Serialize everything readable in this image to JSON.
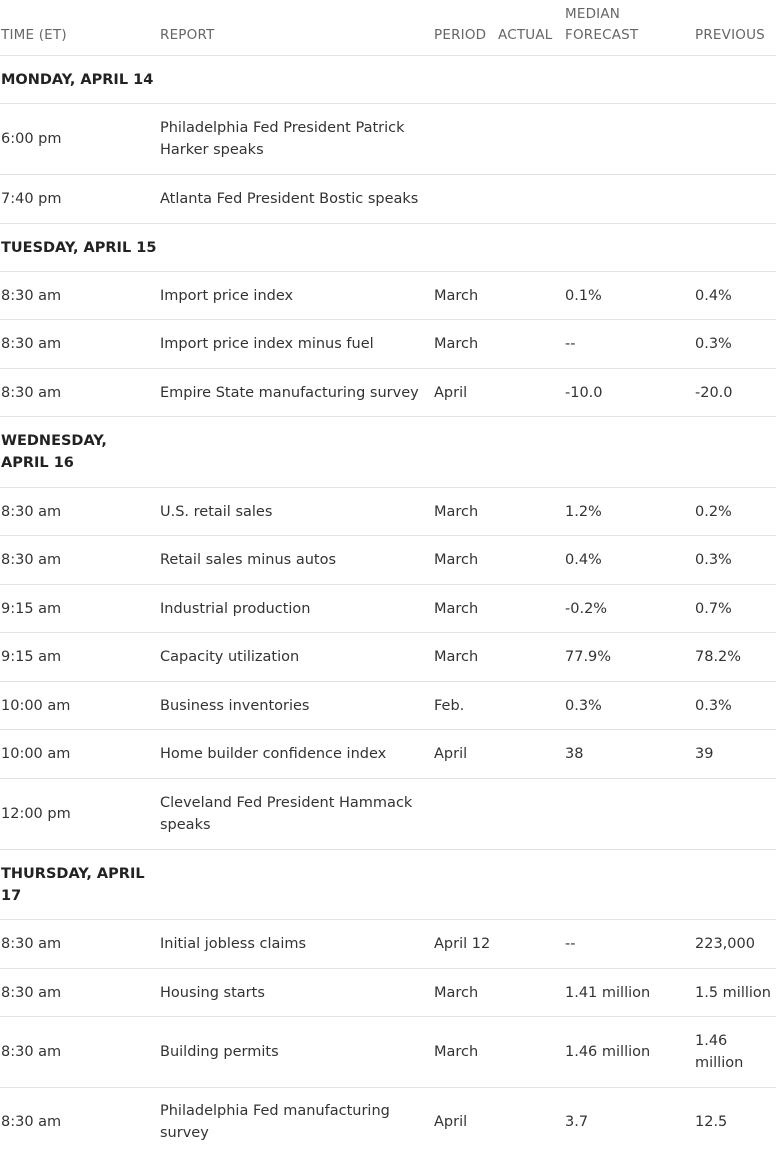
{
  "headers": {
    "time": "TIME (ET)",
    "report": "REPORT",
    "period": "PERIOD",
    "actual": "ACTUAL",
    "median": "MEDIAN FORECAST",
    "previous": "PREVIOUS"
  },
  "days": [
    {
      "label": "MONDAY, APRIL 14",
      "rows": [
        {
          "time": "6:00 pm",
          "report": "Philadelphia Fed President Patrick Harker speaks",
          "period": "",
          "actual": "",
          "median": "",
          "previous": ""
        },
        {
          "time": "7:40 pm",
          "report": "Atlanta Fed President Bostic speaks",
          "period": "",
          "actual": "",
          "median": "",
          "previous": ""
        }
      ]
    },
    {
      "label": "TUESDAY, APRIL 15",
      "rows": [
        {
          "time": "8:30 am",
          "report": "Import price index",
          "period": "March",
          "actual": "",
          "median": "0.1%",
          "previous": "0.4%"
        },
        {
          "time": "8:30 am",
          "report": "Import price index minus fuel",
          "period": "March",
          "actual": "",
          "median": "--",
          "previous": "0.3%"
        },
        {
          "time": "8:30 am",
          "report": "Empire State manufacturing survey",
          "period": "April",
          "actual": "",
          "median": "-10.0",
          "previous": "-20.0"
        }
      ]
    },
    {
      "label": "WEDNESDAY, APRIL 16",
      "rows": [
        {
          "time": "8:30 am",
          "report": "U.S. retail sales",
          "period": "March",
          "actual": "",
          "median": "1.2%",
          "previous": "0.2%"
        },
        {
          "time": "8:30 am",
          "report": "Retail sales minus autos",
          "period": "March",
          "actual": "",
          "median": "0.4%",
          "previous": "0.3%"
        },
        {
          "time": "9:15 am",
          "report": "Industrial production",
          "period": "March",
          "actual": "",
          "median": "-0.2%",
          "previous": "0.7%"
        },
        {
          "time": "9:15 am",
          "report": "Capacity utilization",
          "period": "March",
          "actual": "",
          "median": "77.9%",
          "previous": "78.2%"
        },
        {
          "time": "10:00 am",
          "report": "Business inventories",
          "period": "Feb.",
          "actual": "",
          "median": "0.3%",
          "previous": "0.3%"
        },
        {
          "time": "10:00 am",
          "report": "Home builder confidence index",
          "period": "April",
          "actual": "",
          "median": "38",
          "previous": "39"
        },
        {
          "time": "12:00 pm",
          "report": "Cleveland Fed President Hammack speaks",
          "period": "",
          "actual": "",
          "median": "",
          "previous": ""
        }
      ]
    },
    {
      "label": "THURSDAY, APRIL 17",
      "rows": [
        {
          "time": "8:30 am",
          "report": "Initial jobless claims",
          "period": "April 12",
          "actual": "",
          "median": "--",
          "previous": "223,000"
        },
        {
          "time": "8:30 am",
          "report": "Housing starts",
          "period": "March",
          "actual": "",
          "median": "1.41 million",
          "previous": "1.5 million"
        },
        {
          "time": "8:30 am",
          "report": "Building permits",
          "period": "March",
          "actual": "",
          "median": "1.46 million",
          "previous": "1.46 million"
        },
        {
          "time": "8:30 am",
          "report": "Philadelphia Fed manufacturing survey",
          "period": "April",
          "actual": "",
          "median": "3.7",
          "previous": "12.5"
        }
      ]
    }
  ]
}
